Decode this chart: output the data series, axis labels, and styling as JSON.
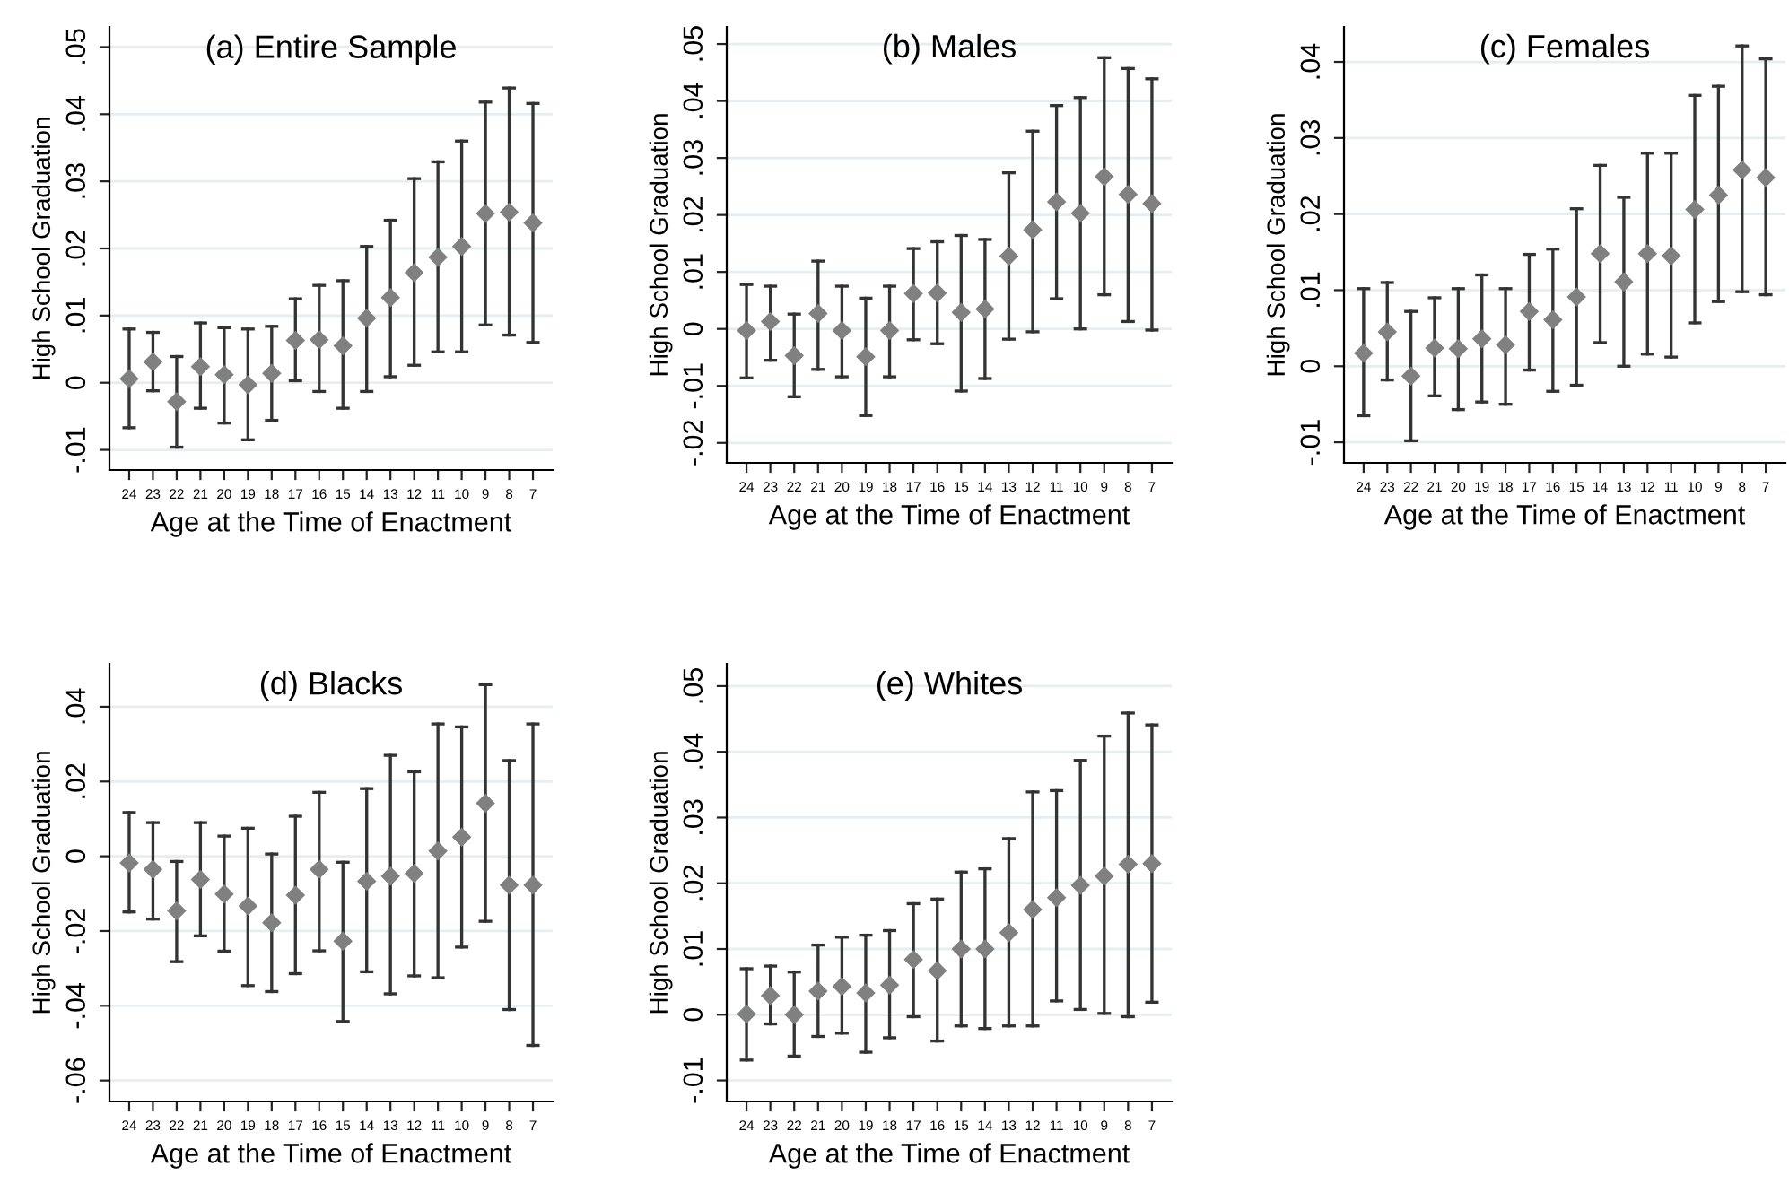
{
  "chart_data": [
    {
      "type": "scatter",
      "title": "(a) Entire Sample",
      "xlabel": "Age at the Time of Enactment",
      "ylabel": "High School Graduation",
      "grid": "y",
      "marker": "diamond",
      "categories": [
        "24",
        "23",
        "22",
        "21",
        "20",
        "19",
        "18",
        "17",
        "16",
        "15",
        "14",
        "13",
        "12",
        "11",
        "10",
        "9",
        "8",
        "7"
      ],
      "ylim": [
        -0.013,
        0.053
      ],
      "yticks": [
        {
          "value": -0.01,
          "label": "-.01"
        },
        0,
        {
          "value": 0.01,
          "label": ".01"
        },
        {
          "value": 0.02,
          "label": ".02"
        },
        {
          "value": 0.03,
          "label": ".03"
        },
        {
          "value": 0.04,
          "label": ".04"
        },
        {
          "value": 0.05,
          "label": ".05"
        }
      ],
      "series": [
        {
          "color": "#808080",
          "values": [
            0.0006,
            0.0031,
            -0.0028,
            0.0024,
            0.0012,
            -0.0003,
            0.0014,
            0.0063,
            0.0064,
            0.0055,
            0.0096,
            0.0127,
            0.0164,
            0.0187,
            0.0203,
            0.0252,
            0.0254,
            0.0238
          ],
          "errors": [
            [
              -0.0067,
              0.008
            ],
            [
              -0.0012,
              0.0075
            ],
            [
              -0.0096,
              0.0039
            ],
            [
              -0.0038,
              0.0089
            ],
            [
              -0.006,
              0.0082
            ],
            [
              -0.0085,
              0.008
            ],
            [
              -0.0056,
              0.0084
            ],
            [
              0.0003,
              0.0125
            ],
            [
              -0.0013,
              0.0145
            ],
            [
              -0.0038,
              0.0152
            ],
            [
              -0.0013,
              0.0203
            ],
            [
              0.0009,
              0.0242
            ],
            [
              0.0026,
              0.0304
            ],
            [
              0.0046,
              0.0329
            ],
            [
              0.0046,
              0.036
            ],
            [
              0.0086,
              0.0418
            ],
            [
              0.0071,
              0.0439
            ],
            [
              0.006,
              0.0416
            ]
          ]
        }
      ]
    },
    {
      "type": "scatter",
      "title": "(b) Males",
      "xlabel": "Age at the Time of Enactment",
      "ylabel": "High School Graduation",
      "grid": "y",
      "marker": "diamond",
      "categories": [
        "24",
        "23",
        "22",
        "21",
        "20",
        "19",
        "18",
        "17",
        "16",
        "15",
        "14",
        "13",
        "12",
        "11",
        "10",
        "9",
        "8",
        "7"
      ],
      "ylim": [
        -0.0235,
        0.053
      ],
      "yticks": [
        {
          "value": -0.02,
          "label": "-.02"
        },
        {
          "value": -0.01,
          "label": "-.01"
        },
        0,
        {
          "value": 0.01,
          "label": ".01"
        },
        {
          "value": 0.02,
          "label": ".02"
        },
        {
          "value": 0.03,
          "label": ".03"
        },
        {
          "value": 0.04,
          "label": ".04"
        },
        {
          "value": 0.05,
          "label": ".05"
        }
      ],
      "series": [
        {
          "color": "#808080",
          "values": [
            -0.0003,
            0.0013,
            -0.0047,
            0.0027,
            -0.0003,
            -0.0049,
            -0.0003,
            0.0062,
            0.0063,
            0.0029,
            0.0035,
            0.0128,
            0.0174,
            0.0223,
            0.0203,
            0.0267,
            0.0236,
            0.022
          ],
          "errors": [
            [
              -0.0086,
              0.0078
            ],
            [
              -0.0055,
              0.0075
            ],
            [
              -0.0119,
              0.0026
            ],
            [
              -0.0071,
              0.0119
            ],
            [
              -0.0084,
              0.0075
            ],
            [
              -0.0152,
              0.0054
            ],
            [
              -0.0084,
              0.0075
            ],
            [
              -0.0019,
              0.0141
            ],
            [
              -0.0026,
              0.0153
            ],
            [
              -0.0109,
              0.0164
            ],
            [
              -0.0087,
              0.0157
            ],
            [
              -0.0018,
              0.0274
            ],
            [
              -0.0005,
              0.0347
            ],
            [
              0.0053,
              0.0392
            ],
            [
              0.0,
              0.0406
            ],
            [
              0.006,
              0.0476
            ],
            [
              0.0013,
              0.0457
            ],
            [
              -0.0002,
              0.0439
            ]
          ]
        }
      ]
    },
    {
      "type": "scatter",
      "title": "(c) Females",
      "xlabel": "Age at the Time of Enactment",
      "ylabel": "High School Graduation",
      "grid": "y",
      "marker": "diamond",
      "categories": [
        "24",
        "23",
        "22",
        "21",
        "20",
        "19",
        "18",
        "17",
        "16",
        "15",
        "14",
        "13",
        "12",
        "11",
        "10",
        "9",
        "8",
        "7"
      ],
      "ylim": [
        -0.0127,
        0.0446
      ],
      "yticks": [
        {
          "value": -0.01,
          "label": "-.01"
        },
        0,
        {
          "value": 0.01,
          "label": ".01"
        },
        {
          "value": 0.02,
          "label": ".02"
        },
        {
          "value": 0.03,
          "label": ".03"
        },
        {
          "value": 0.04,
          "label": ".04"
        }
      ],
      "series": [
        {
          "color": "#808080",
          "values": [
            0.0017,
            0.0045,
            -0.0013,
            0.0024,
            0.0023,
            0.0036,
            0.0028,
            0.0072,
            0.0061,
            0.0091,
            0.0148,
            0.0111,
            0.0148,
            0.0145,
            0.0206,
            0.0225,
            0.0258,
            0.0248
          ],
          "errors": [
            [
              -0.0065,
              0.0102
            ],
            [
              -0.0018,
              0.011
            ],
            [
              -0.0098,
              0.0072
            ],
            [
              -0.0039,
              0.009
            ],
            [
              -0.0057,
              0.0102
            ],
            [
              -0.0047,
              0.012
            ],
            [
              -0.005,
              0.0102
            ],
            [
              -0.0005,
              0.0147
            ],
            [
              -0.0033,
              0.0154
            ],
            [
              -0.0025,
              0.0207
            ],
            [
              0.0031,
              0.0264
            ],
            [
              0.0,
              0.0222
            ],
            [
              0.0016,
              0.028
            ],
            [
              0.0012,
              0.028
            ],
            [
              0.0057,
              0.0356
            ],
            [
              0.0085,
              0.0368
            ],
            [
              0.0098,
              0.0421
            ],
            [
              0.0094,
              0.0404
            ]
          ]
        }
      ]
    },
    {
      "type": "scatter",
      "title": "(d) Blacks",
      "xlabel": "Age at the Time of Enactment",
      "ylabel": "High School Graduation",
      "grid": "y",
      "marker": "diamond",
      "categories": [
        "24",
        "23",
        "22",
        "21",
        "20",
        "19",
        "18",
        "17",
        "16",
        "15",
        "14",
        "13",
        "12",
        "11",
        "10",
        "9",
        "8",
        "7"
      ],
      "ylim": [
        -0.0656,
        0.0515
      ],
      "yticks": [
        {
          "value": -0.06,
          "label": "-.06"
        },
        {
          "value": -0.04,
          "label": "-.04"
        },
        {
          "value": -0.02,
          "label": "-.02"
        },
        0,
        {
          "value": 0.02,
          "label": ".02"
        },
        {
          "value": 0.04,
          "label": ".04"
        }
      ],
      "series": [
        {
          "color": "#808080",
          "values": [
            -0.0018,
            -0.0035,
            -0.0146,
            -0.0062,
            -0.0101,
            -0.0133,
            -0.0178,
            -0.0104,
            -0.0035,
            -0.0227,
            -0.0067,
            -0.0053,
            -0.0046,
            0.0014,
            0.0051,
            0.0142,
            -0.0077,
            -0.0077
          ],
          "errors": [
            [
              -0.0149,
              0.0117
            ],
            [
              -0.0168,
              0.009
            ],
            [
              -0.0282,
              -0.0014
            ],
            [
              -0.0213,
              0.009
            ],
            [
              -0.0254,
              0.0054
            ],
            [
              -0.0346,
              0.0075
            ],
            [
              -0.0362,
              0.0006
            ],
            [
              -0.0314,
              0.0107
            ],
            [
              -0.0253,
              0.0171
            ],
            [
              -0.0442,
              -0.0016
            ],
            [
              -0.0309,
              0.0181
            ],
            [
              -0.0368,
              0.027
            ],
            [
              -0.032,
              0.0226
            ],
            [
              -0.0325,
              0.0354
            ],
            [
              -0.0243,
              0.0346
            ],
            [
              -0.0174,
              0.0459
            ],
            [
              -0.041,
              0.0256
            ],
            [
              -0.0506,
              0.0354
            ]
          ]
        }
      ]
    },
    {
      "type": "scatter",
      "title": "(e) Whites",
      "xlabel": "Age at the Time of Enactment",
      "ylabel": "High School Graduation",
      "grid": "y",
      "marker": "diamond",
      "categories": [
        "24",
        "23",
        "22",
        "21",
        "20",
        "19",
        "18",
        "17",
        "16",
        "15",
        "14",
        "13",
        "12",
        "11",
        "10",
        "9",
        "8",
        "7"
      ],
      "ylim": [
        -0.0132,
        0.0534
      ],
      "yticks": [
        {
          "value": -0.01,
          "label": "-.01"
        },
        0,
        {
          "value": 0.01,
          "label": ".01"
        },
        {
          "value": 0.02,
          "label": ".02"
        },
        {
          "value": 0.03,
          "label": ".03"
        },
        {
          "value": 0.04,
          "label": ".04"
        },
        {
          "value": 0.05,
          "label": ".05"
        }
      ],
      "series": [
        {
          "color": "#808080",
          "values": [
            0.0001,
            0.0029,
            0.0,
            0.0036,
            0.0043,
            0.0033,
            0.0045,
            0.0084,
            0.0067,
            0.01,
            0.01,
            0.0125,
            0.016,
            0.0178,
            0.0197,
            0.0211,
            0.0229,
            0.023
          ],
          "errors": [
            [
              -0.0069,
              0.007
            ],
            [
              -0.0014,
              0.0074
            ],
            [
              -0.0063,
              0.0065
            ],
            [
              -0.0033,
              0.0106
            ],
            [
              -0.0028,
              0.0118
            ],
            [
              -0.0057,
              0.0121
            ],
            [
              -0.0035,
              0.0128
            ],
            [
              -0.0003,
              0.0169
            ],
            [
              -0.004,
              0.0176
            ],
            [
              -0.0017,
              0.0217
            ],
            [
              -0.0021,
              0.0222
            ],
            [
              -0.0017,
              0.0268
            ],
            [
              -0.0017,
              0.0339
            ],
            [
              0.0021,
              0.0341
            ],
            [
              0.0008,
              0.0387
            ],
            [
              0.0002,
              0.0424
            ],
            [
              -0.0003,
              0.0459
            ],
            [
              0.0019,
              0.0441
            ]
          ]
        }
      ]
    }
  ]
}
